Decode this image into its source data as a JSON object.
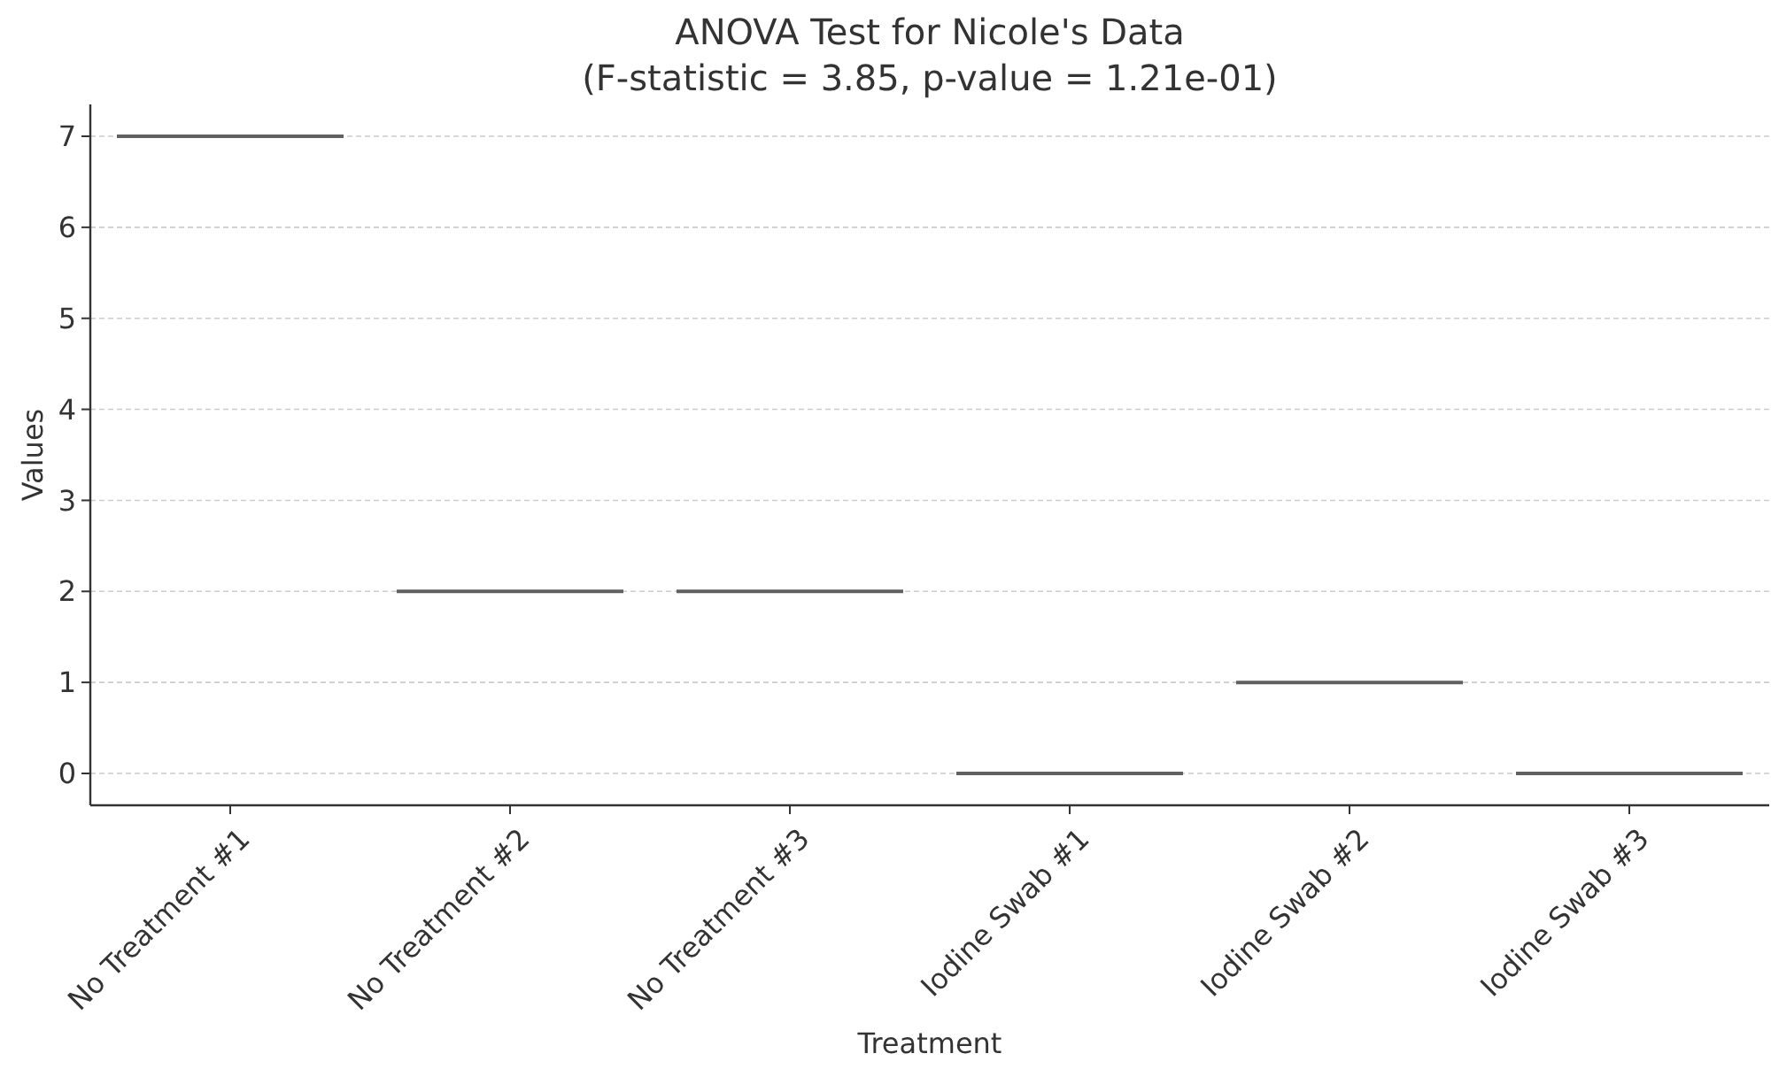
{
  "chart_data": {
    "type": "box",
    "title": "ANOVA Test for Nicole's Data",
    "subtitle": "(F-statistic = 3.85, p-value = 1.21e-01)",
    "xlabel": "Treatment",
    "ylabel": "Values",
    "categories": [
      "No Treatment #1",
      "No Treatment #2",
      "No Treatment #3",
      "Iodine Swab #1",
      "Iodine Swab #2",
      "Iodine Swab #3"
    ],
    "boxes": [
      {
        "low": 7,
        "q1": 7,
        "median": 7,
        "q3": 7,
        "high": 7
      },
      {
        "low": 2,
        "q1": 2,
        "median": 2,
        "q3": 2,
        "high": 2
      },
      {
        "low": 2,
        "q1": 2,
        "median": 2,
        "q3": 2,
        "high": 2
      },
      {
        "low": 0,
        "q1": 0,
        "median": 0,
        "q3": 0,
        "high": 0
      },
      {
        "low": 1,
        "q1": 1,
        "median": 1,
        "q3": 1,
        "high": 1
      },
      {
        "low": 0,
        "q1": 0,
        "median": 0,
        "q3": 0,
        "high": 0
      }
    ],
    "color": "#606060",
    "ylim": [
      -0.35,
      7.35
    ],
    "yticks": [
      0,
      1,
      2,
      3,
      4,
      5,
      6,
      7
    ],
    "grid": "y"
  }
}
